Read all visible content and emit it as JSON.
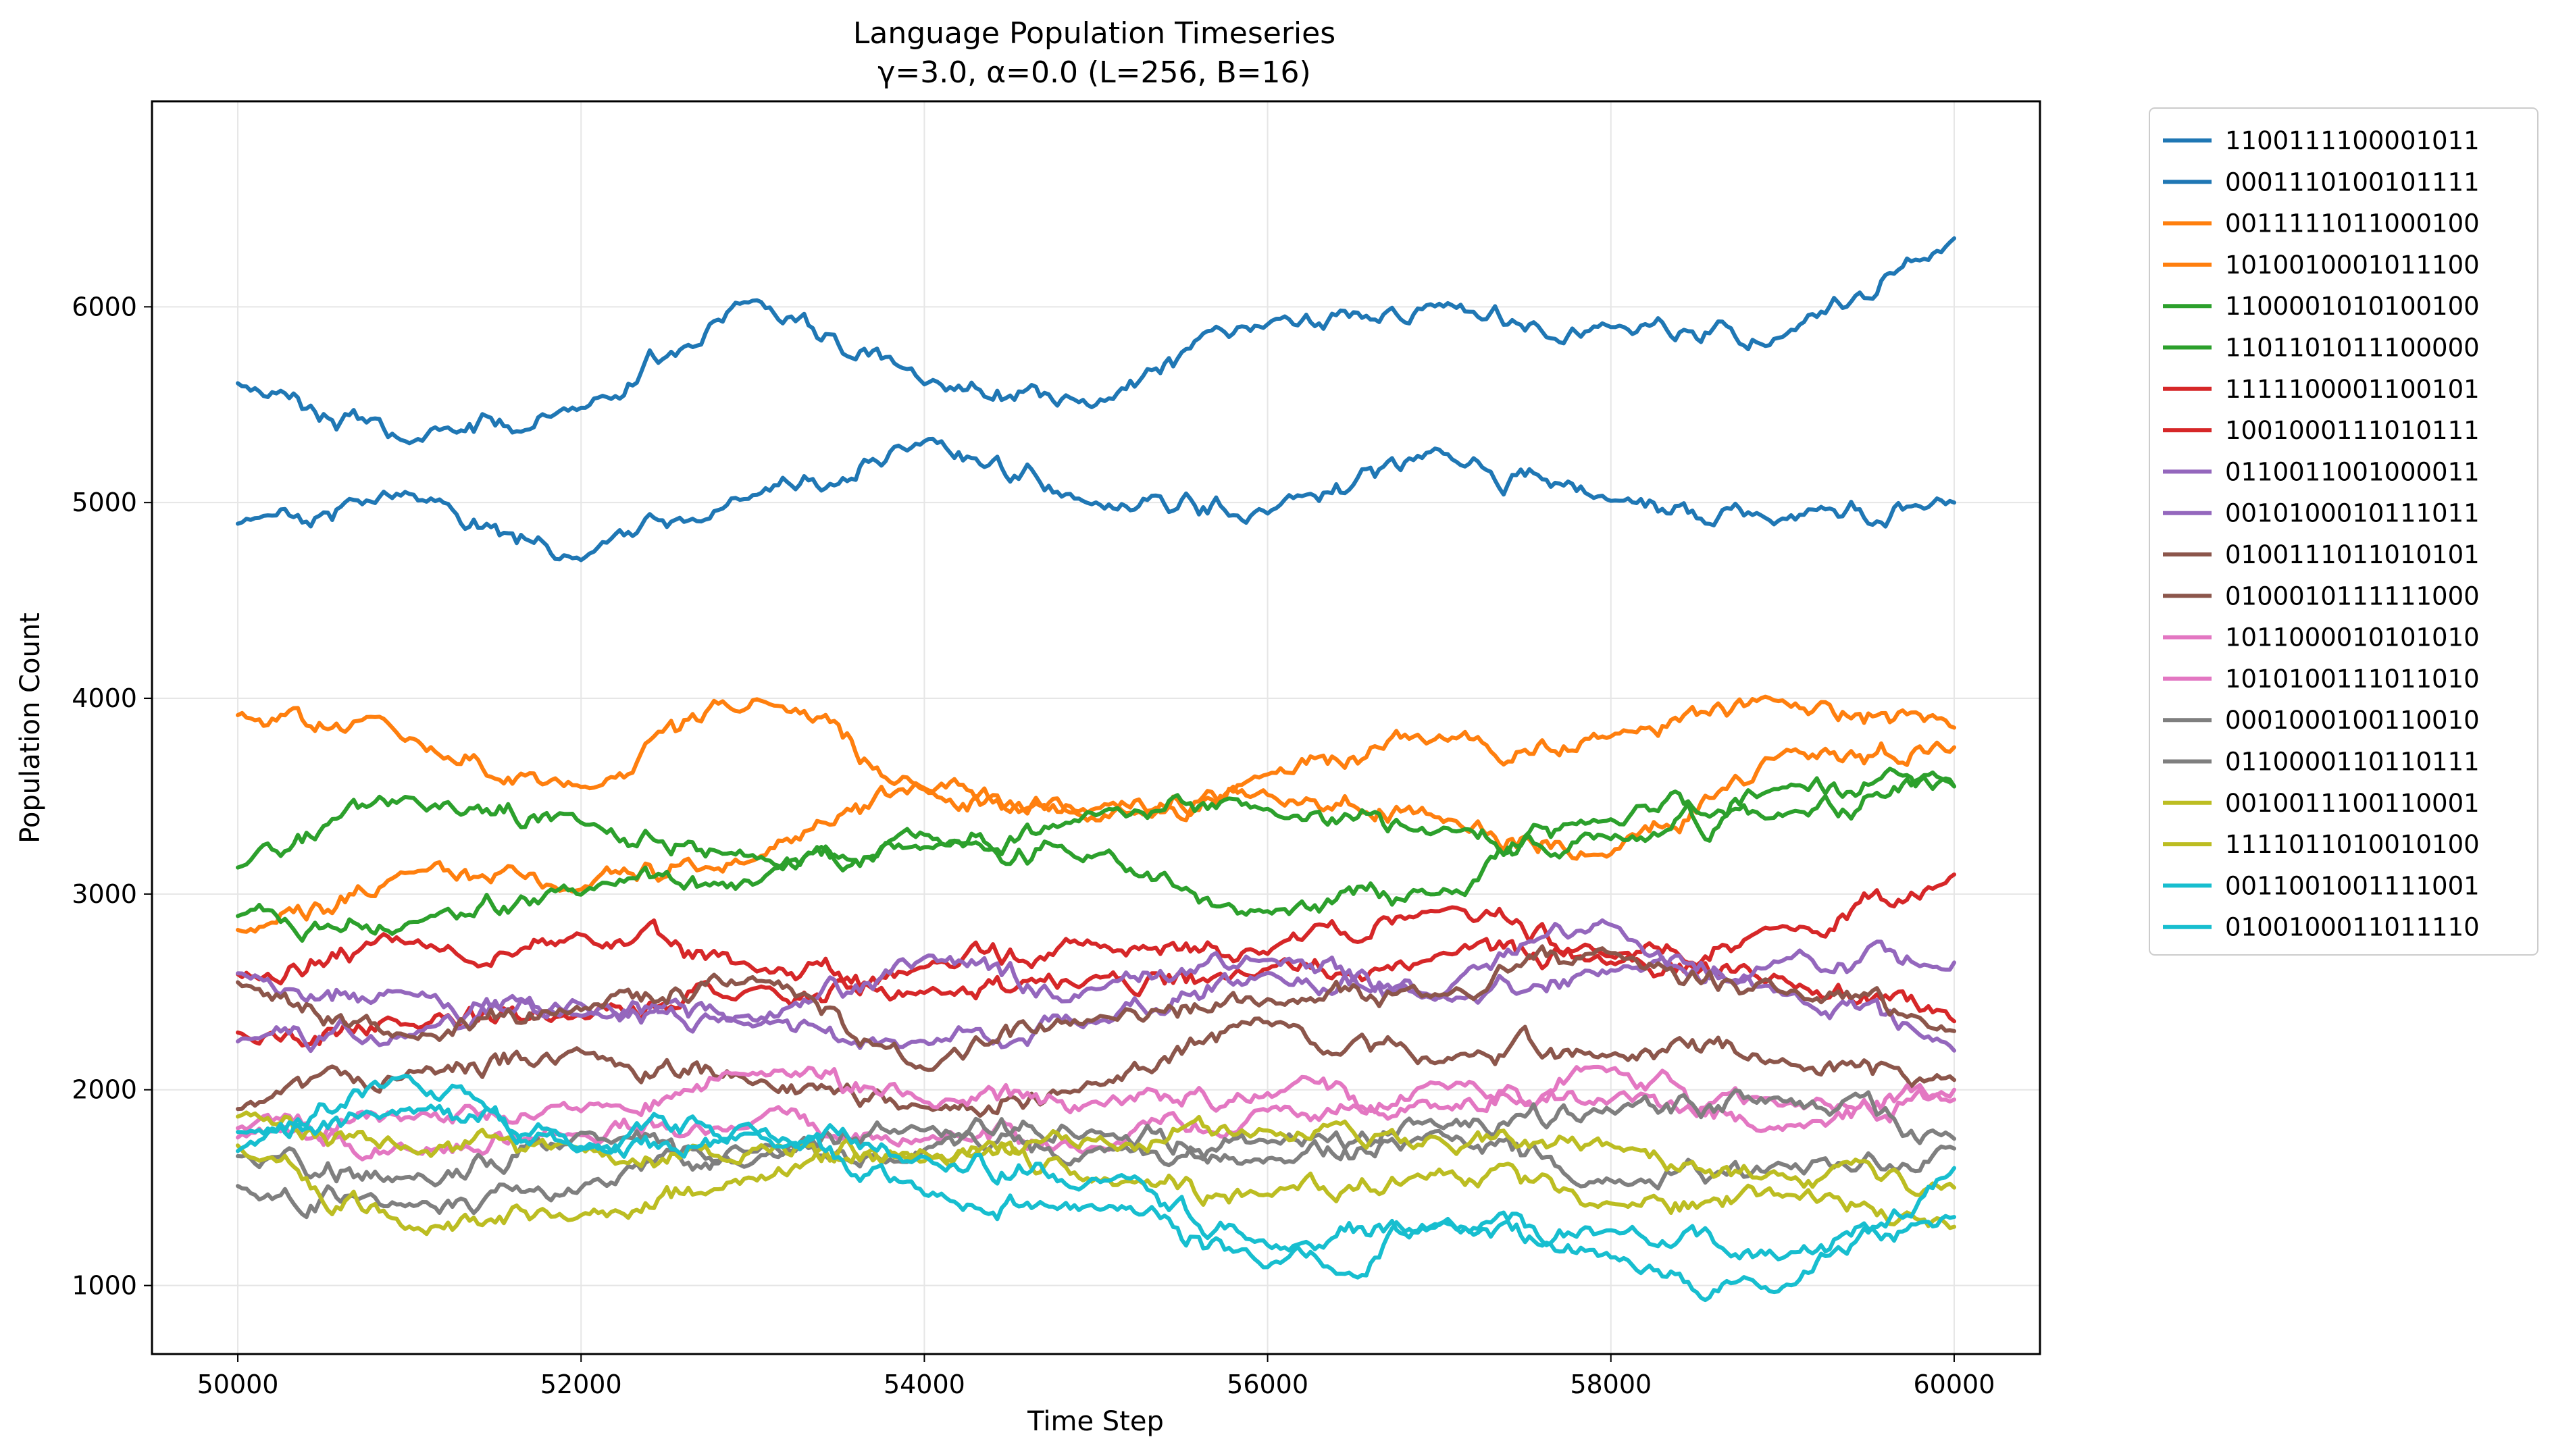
{
  "chart_data": {
    "type": "line",
    "title": "Language Population Timeseries",
    "subtitle": "γ=3.0, α=0.0 (L=256, B=16)",
    "xlabel": "Time Step",
    "ylabel": "Population Count",
    "xlim": [
      49500,
      60500
    ],
    "ylim": [
      650,
      7050
    ],
    "xticks": [
      50000,
      52000,
      54000,
      56000,
      58000,
      60000
    ],
    "yticks": [
      1000,
      2000,
      3000,
      4000,
      5000,
      6000
    ],
    "grid": true,
    "legend_position": "outside-right",
    "x": [
      50000,
      51000,
      52000,
      53000,
      54000,
      55000,
      56000,
      57000,
      58000,
      59000,
      60000
    ],
    "series": [
      {
        "name": "1100111100001011",
        "color": "#1f77b4",
        "values": [
          5600,
          5300,
          5500,
          6050,
          5600,
          5500,
          5900,
          6000,
          5900,
          5850,
          6350
        ]
      },
      {
        "name": "0001110100101111",
        "color": "#1f77b4",
        "values": [
          4880,
          5050,
          4700,
          5050,
          5300,
          5050,
          4950,
          5250,
          5000,
          4900,
          5000
        ]
      },
      {
        "name": "0011111011000100",
        "color": "#ff7f0e",
        "values": [
          3900,
          3800,
          3550,
          4000,
          3550,
          3400,
          3600,
          3800,
          3800,
          4000,
          3850
        ]
      },
      {
        "name": "1010010001011100",
        "color": "#ff7f0e",
        "values": [
          2800,
          3100,
          3050,
          3200,
          3550,
          3450,
          3500,
          3400,
          3200,
          3700,
          3750
        ]
      },
      {
        "name": "1100001010100100",
        "color": "#2ca02c",
        "values": [
          3150,
          3500,
          3350,
          3200,
          3250,
          3400,
          3450,
          3300,
          3300,
          3400,
          3550
        ]
      },
      {
        "name": "1101101011100000",
        "color": "#2ca02c",
        "values": [
          2900,
          2850,
          3000,
          3050,
          3300,
          3200,
          2900,
          3000,
          3400,
          3550,
          3550
        ]
      },
      {
        "name": "1111100001100101",
        "color": "#d62728",
        "values": [
          2600,
          2750,
          2800,
          2600,
          2600,
          2750,
          2700,
          2950,
          2700,
          2800,
          3100
        ]
      },
      {
        "name": "1001000111010111",
        "color": "#d62728",
        "values": [
          2300,
          2350,
          2400,
          2500,
          2500,
          2550,
          2600,
          2700,
          2650,
          2600,
          2350
        ]
      },
      {
        "name": "0110011001000011",
        "color": "#9467bd",
        "values": [
          2600,
          2450,
          2400,
          2350,
          2650,
          2500,
          2700,
          2500,
          2600,
          2650,
          2650
        ]
      },
      {
        "name": "0010100010111011",
        "color": "#9467bd",
        "values": [
          2250,
          2300,
          2450,
          2300,
          2250,
          2350,
          2600,
          2500,
          2850,
          2500,
          2200
        ]
      },
      {
        "name": "0100111011010101",
        "color": "#8c564b",
        "values": [
          2550,
          2300,
          2400,
          2550,
          2150,
          2350,
          2450,
          2500,
          2700,
          2500,
          2300
        ]
      },
      {
        "name": "0100010111111000",
        "color": "#8c564b",
        "values": [
          1900,
          2100,
          2200,
          2050,
          1900,
          2050,
          2350,
          2150,
          2200,
          2150,
          2050
        ]
      },
      {
        "name": "1011000010101010",
        "color": "#e377c2",
        "values": [
          1800,
          1850,
          1900,
          2100,
          1950,
          1900,
          2000,
          1900,
          2100,
          1800,
          2000
        ]
      },
      {
        "name": "1010100111011010",
        "color": "#e377c2",
        "values": [
          1750,
          1700,
          1800,
          1850,
          1750,
          1700,
          1900,
          2000,
          1950,
          1900,
          1950
        ]
      },
      {
        "name": "0001000100110010",
        "color": "#7f7f7f",
        "values": [
          1500,
          1400,
          1500,
          1700,
          1800,
          1800,
          1700,
          1800,
          1900,
          1950,
          1750
        ]
      },
      {
        "name": "0110000110110111",
        "color": "#7f7f7f",
        "values": [
          1650,
          1550,
          1750,
          1650,
          1700,
          1700,
          1650,
          1750,
          1550,
          1600,
          1700
        ]
      },
      {
        "name": "0010011100110001",
        "color": "#bcbd22",
        "values": [
          1850,
          1700,
          1650,
          1700,
          1650,
          1750,
          1800,
          1750,
          1700,
          1550,
          1500
        ]
      },
      {
        "name": "1111011010010100",
        "color": "#bcbd22",
        "values": [
          1700,
          1300,
          1350,
          1550,
          1700,
          1550,
          1450,
          1600,
          1400,
          1450,
          1300
        ]
      },
      {
        "name": "0011001001111001",
        "color": "#17becf",
        "values": [
          1800,
          1900,
          1700,
          1750,
          1650,
          1550,
          1200,
          1300,
          1250,
          1150,
          1350
        ]
      },
      {
        "name": "0100100011011110",
        "color": "#17becf",
        "values": [
          1700,
          2050,
          1700,
          1800,
          1450,
          1400,
          1100,
          1300,
          1150,
          1000,
          1600
        ]
      }
    ]
  }
}
